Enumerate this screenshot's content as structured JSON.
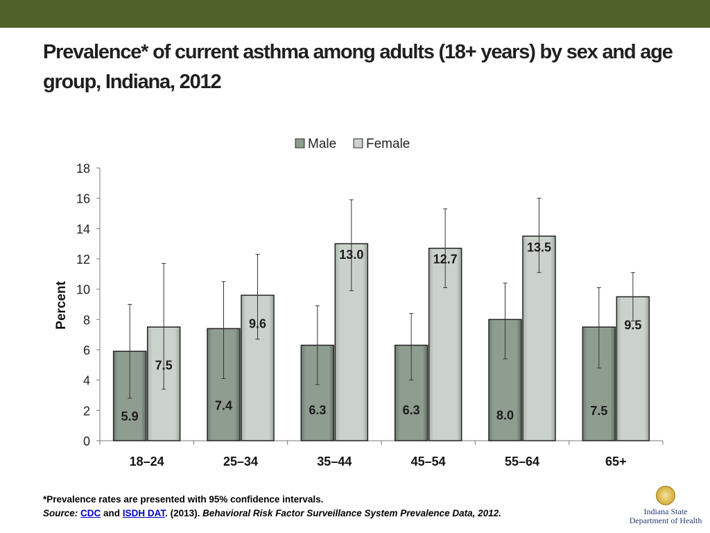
{
  "slide": {
    "title": "Prevalence* of current asthma among adults (18+ years) by sex and age group, Indiana, 2012",
    "footnote": "*Prevalence rates are presented with 95% confidence intervals.",
    "source_prefix": "Source:",
    "source_link_cdc": "CDC",
    "source_and": "and",
    "source_link_isdh": "ISDH DAT",
    "source_year": ". (2013).",
    "source_title": "Behavioral Risk Factor Surveillance System Prevalence Data, 2012.",
    "logo_line1": "Indiana State",
    "logo_line2": "Department of Health",
    "logo_icon": "state-seal-icon",
    "header_color": "#4f6228"
  },
  "chart_data": {
    "type": "bar",
    "title": "",
    "xlabel": "",
    "ylabel": "Percent",
    "ylim": [
      0,
      18
    ],
    "yticks": [
      0,
      2,
      4,
      6,
      8,
      10,
      12,
      14,
      16,
      18
    ],
    "grid": false,
    "legend_position": "top",
    "categories": [
      "18–24",
      "25–34",
      "35–44",
      "45–54",
      "55–64",
      "65+"
    ],
    "series": [
      {
        "name": "Male",
        "color": "#8a9a8c",
        "values": [
          5.9,
          7.4,
          6.3,
          6.3,
          8.0,
          7.5
        ],
        "ci_lower": [
          2.8,
          4.1,
          3.7,
          4.0,
          5.4,
          4.8
        ],
        "ci_upper": [
          9.0,
          10.5,
          8.9,
          8.4,
          10.4,
          10.1
        ]
      },
      {
        "name": "Female",
        "color": "#c3cbc4",
        "values": [
          7.5,
          9.6,
          13.0,
          12.7,
          13.5,
          9.5
        ],
        "ci_lower": [
          3.4,
          6.7,
          9.9,
          10.1,
          11.1,
          7.9
        ],
        "ci_upper": [
          11.7,
          12.3,
          15.9,
          15.3,
          16.0,
          11.1
        ]
      }
    ]
  }
}
